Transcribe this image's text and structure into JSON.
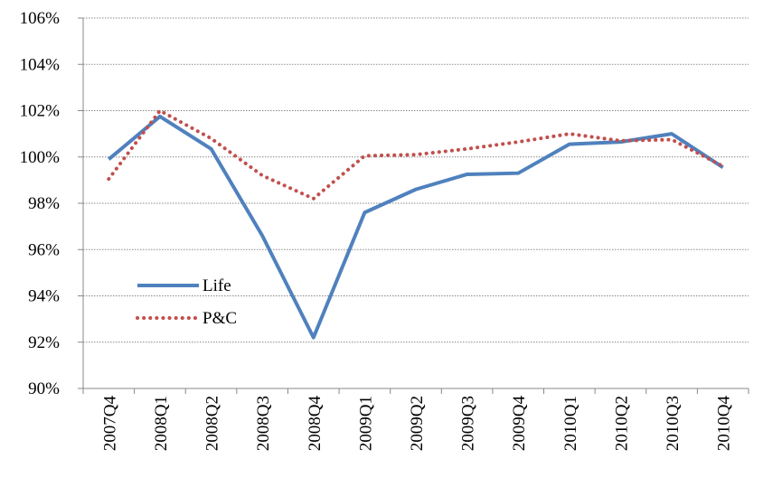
{
  "chart_data": {
    "type": "line",
    "categories": [
      "2007Q4",
      "2008Q1",
      "2008Q2",
      "2008Q3",
      "2008Q4",
      "2009Q1",
      "2009Q2",
      "2009Q3",
      "2009Q4",
      "2010Q1",
      "2010Q2",
      "2010Q3",
      "2010Q4"
    ],
    "series": [
      {
        "name": "Life",
        "color": "#4f81bd",
        "style": "solid",
        "values": [
          99.9,
          101.75,
          100.35,
          96.6,
          92.2,
          97.6,
          98.6,
          99.25,
          99.3,
          100.55,
          100.65,
          101.0,
          99.55
        ]
      },
      {
        "name": "P&C",
        "color": "#c0504d",
        "style": "dotted",
        "values": [
          99.05,
          102.0,
          100.8,
          99.2,
          98.2,
          100.05,
          100.1,
          100.35,
          100.65,
          101.0,
          100.7,
          100.75,
          99.6
        ]
      }
    ],
    "ylim": [
      90,
      106
    ],
    "yticks": [
      {
        "value": 90,
        "label": "90%"
      },
      {
        "value": 92,
        "label": "92%"
      },
      {
        "value": 94,
        "label": "94%"
      },
      {
        "value": 96,
        "label": "96%"
      },
      {
        "value": 98,
        "label": "98%"
      },
      {
        "value": 100,
        "label": "100%"
      },
      {
        "value": 102,
        "label": "102%"
      },
      {
        "value": 104,
        "label": "104%"
      },
      {
        "value": 106,
        "label": "106%"
      }
    ],
    "grid": true,
    "legend": "left"
  }
}
